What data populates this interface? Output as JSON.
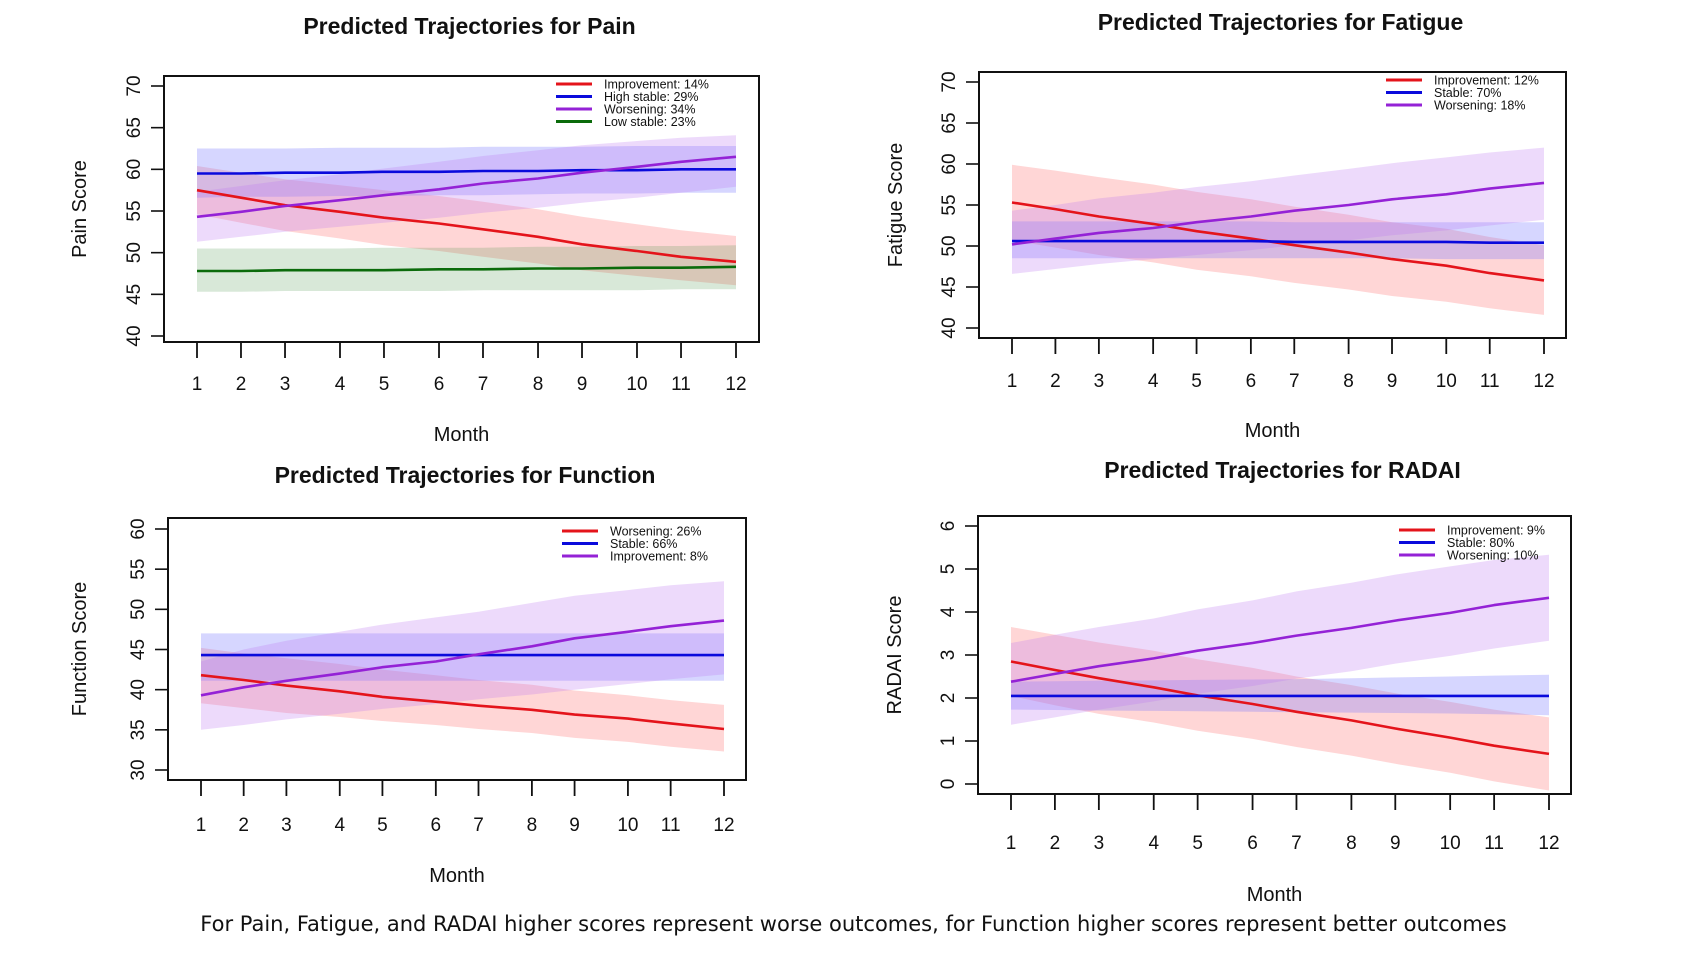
{
  "figure": {
    "caption": "For Pain, Fatigue, and RADAI higher scores represent worse outcomes, for Function higher scores represent better outcomes"
  },
  "colors": {
    "red": "#E4141B",
    "blue": "#0A0ADC",
    "purple": "#9422D6",
    "green": "#0B6B0B",
    "red_band": "rgba(255,120,120,0.30)",
    "blue_band": "rgba(120,120,255,0.30)",
    "purple_band": "rgba(190,120,240,0.27)",
    "green_band": "rgba(60,140,60,0.20)"
  },
  "chart_data": [
    {
      "id": "pain",
      "type": "line",
      "title": "Predicted Trajectories for Pain",
      "xlabel": "Month",
      "ylabel": "Pain Score",
      "x": [
        1,
        2,
        3,
        4,
        5,
        6,
        7,
        8,
        9,
        10,
        11,
        12
      ],
      "xticks": [
        "1",
        "2",
        "3",
        "4",
        "5",
        "6",
        "7",
        "8",
        "9",
        "10",
        "11",
        "12"
      ],
      "ylim": [
        40,
        70
      ],
      "yticks": [
        40,
        45,
        50,
        55,
        60,
        65,
        70
      ],
      "legend_position": "top-right",
      "grid": false,
      "series": [
        {
          "name": "Improvement: 14%",
          "color": "red",
          "values": [
            57.5,
            56.6,
            55.7,
            54.9,
            54.2,
            53.5,
            52.8,
            51.9,
            51.0,
            50.2,
            49.5,
            48.9
          ],
          "lower": [
            54.6,
            53.6,
            52.6,
            51.7,
            50.9,
            50.2,
            49.5,
            48.7,
            47.9,
            47.2,
            46.7,
            46.1
          ],
          "upper": [
            60.4,
            59.6,
            58.8,
            58.1,
            57.5,
            56.8,
            56.1,
            55.2,
            54.3,
            53.4,
            52.7,
            52.0
          ]
        },
        {
          "name": "High stable: 29%",
          "color": "blue",
          "values": [
            59.5,
            59.5,
            59.6,
            59.6,
            59.7,
            59.7,
            59.8,
            59.8,
            59.9,
            59.9,
            60.0,
            60.0
          ],
          "lower": [
            56.6,
            56.7,
            56.7,
            56.8,
            56.8,
            56.9,
            56.9,
            57.0,
            57.1,
            57.1,
            57.2,
            57.2
          ],
          "upper": [
            62.5,
            62.5,
            62.5,
            62.6,
            62.6,
            62.6,
            62.7,
            62.7,
            62.7,
            62.8,
            62.8,
            62.8
          ]
        },
        {
          "name": "Worsening: 34%",
          "color": "purple",
          "values": [
            54.3,
            54.9,
            55.6,
            56.3,
            56.9,
            57.6,
            58.3,
            58.9,
            59.6,
            60.3,
            60.9,
            61.5
          ],
          "lower": [
            51.3,
            51.9,
            52.5,
            53.1,
            53.6,
            54.2,
            54.8,
            55.4,
            56.0,
            56.6,
            57.2,
            57.9
          ],
          "upper": [
            57.3,
            58.0,
            58.7,
            59.4,
            60.1,
            60.9,
            61.6,
            62.3,
            62.9,
            63.4,
            63.8,
            64.1
          ]
        },
        {
          "name": "Low stable: 23%",
          "color": "green",
          "values": [
            47.8,
            47.8,
            47.9,
            47.9,
            47.9,
            48.0,
            48.0,
            48.1,
            48.1,
            48.2,
            48.2,
            48.3
          ],
          "lower": [
            45.3,
            45.3,
            45.4,
            45.4,
            45.4,
            45.4,
            45.5,
            45.5,
            45.5,
            45.5,
            45.6,
            45.6
          ],
          "upper": [
            50.5,
            50.5,
            50.5,
            50.5,
            50.6,
            50.6,
            50.6,
            50.7,
            50.7,
            50.8,
            50.8,
            50.9
          ]
        }
      ]
    },
    {
      "id": "fatigue",
      "type": "line",
      "title": "Predicted Trajectories for Fatigue",
      "xlabel": "Month",
      "ylabel": "Fatigue Score",
      "x": [
        1,
        2,
        3,
        4,
        5,
        6,
        7,
        8,
        9,
        10,
        11,
        12
      ],
      "xticks": [
        "1",
        "2",
        "3",
        "4",
        "5",
        "6",
        "7",
        "8",
        "9",
        "10",
        "11",
        "12"
      ],
      "ylim": [
        40,
        70
      ],
      "yticks": [
        40,
        45,
        50,
        55,
        60,
        65,
        70
      ],
      "legend_position": "top-right",
      "grid": false,
      "series": [
        {
          "name": "Improvement: 12%",
          "color": "red",
          "values": [
            55.3,
            54.5,
            53.6,
            52.7,
            51.8,
            50.9,
            50.1,
            49.2,
            48.4,
            47.6,
            46.7,
            45.8
          ],
          "lower": [
            50.7,
            49.8,
            48.9,
            48.0,
            47.1,
            46.3,
            45.5,
            44.7,
            43.9,
            43.2,
            42.4,
            41.6
          ],
          "upper": [
            59.9,
            59.2,
            58.4,
            57.5,
            56.6,
            55.7,
            54.8,
            53.8,
            52.9,
            52.1,
            51.1,
            50.1
          ]
        },
        {
          "name": "Stable: 70%",
          "color": "blue",
          "values": [
            50.6,
            50.6,
            50.6,
            50.6,
            50.6,
            50.6,
            50.5,
            50.5,
            50.5,
            50.5,
            50.4,
            50.4
          ],
          "lower": [
            48.5,
            48.5,
            48.5,
            48.5,
            48.5,
            48.5,
            48.5,
            48.5,
            48.5,
            48.4,
            48.4,
            48.4
          ],
          "upper": [
            53.0,
            53.0,
            53.0,
            53.0,
            53.0,
            53.0,
            52.9,
            52.9,
            52.9,
            52.9,
            52.9,
            52.9
          ]
        },
        {
          "name": "Worsening: 18%",
          "color": "purple",
          "values": [
            50.2,
            50.9,
            51.6,
            52.2,
            52.9,
            53.6,
            54.3,
            55.0,
            55.7,
            56.3,
            57.0,
            57.7
          ],
          "lower": [
            46.6,
            47.2,
            47.8,
            48.4,
            48.9,
            49.5,
            50.1,
            50.7,
            51.3,
            51.9,
            52.5,
            53.2
          ],
          "upper": [
            54.3,
            55.0,
            55.8,
            56.5,
            57.2,
            57.9,
            58.6,
            59.4,
            60.1,
            60.8,
            61.4,
            62.0
          ]
        }
      ]
    },
    {
      "id": "function",
      "type": "line",
      "title": "Predicted Trajectories for Function",
      "xlabel": "Month",
      "ylabel": "Function Score",
      "x": [
        1,
        2,
        3,
        4,
        5,
        6,
        7,
        8,
        9,
        10,
        11,
        12
      ],
      "xticks": [
        "1",
        "2",
        "3",
        "4",
        "5",
        "6",
        "7",
        "8",
        "9",
        "10",
        "11",
        "12"
      ],
      "ylim": [
        30,
        60
      ],
      "yticks": [
        30,
        35,
        40,
        45,
        50,
        55,
        60
      ],
      "legend_position": "top-right",
      "grid": false,
      "series": [
        {
          "name": "Worsening: 26%",
          "color": "red",
          "values": [
            41.8,
            41.2,
            40.5,
            39.8,
            39.1,
            38.5,
            38.0,
            37.5,
            36.9,
            36.4,
            35.8,
            35.1
          ],
          "lower": [
            38.3,
            37.7,
            37.1,
            36.6,
            36.1,
            35.6,
            35.1,
            34.6,
            34.0,
            33.5,
            32.9,
            32.3
          ],
          "upper": [
            45.2,
            44.5,
            43.9,
            43.2,
            42.5,
            41.8,
            41.2,
            40.6,
            39.9,
            39.3,
            38.7,
            38.1
          ]
        },
        {
          "name": "Stable: 66%",
          "color": "blue",
          "values": [
            44.3,
            44.3,
            44.3,
            44.3,
            44.3,
            44.3,
            44.3,
            44.3,
            44.3,
            44.3,
            44.3,
            44.3
          ],
          "lower": [
            41.1,
            41.1,
            41.1,
            41.1,
            41.1,
            41.1,
            41.1,
            41.1,
            41.1,
            41.1,
            41.1,
            41.1
          ],
          "upper": [
            47.0,
            47.0,
            47.0,
            47.0,
            47.0,
            47.0,
            47.0,
            47.0,
            47.0,
            47.0,
            47.0,
            47.0
          ]
        },
        {
          "name": "Improvement: 8%",
          "color": "purple",
          "values": [
            39.3,
            40.3,
            41.1,
            42.0,
            42.8,
            43.5,
            44.4,
            45.4,
            46.4,
            47.2,
            47.9,
            48.6
          ],
          "lower": [
            35.0,
            35.6,
            36.3,
            37.0,
            37.6,
            38.2,
            38.8,
            39.4,
            40.0,
            40.7,
            41.3,
            41.9
          ],
          "upper": [
            43.5,
            45.0,
            46.1,
            47.2,
            48.1,
            49.0,
            49.7,
            50.8,
            51.7,
            52.4,
            53.0,
            53.5
          ]
        }
      ]
    },
    {
      "id": "radai",
      "type": "line",
      "title": "Predicted Trajectories for RADAI",
      "xlabel": "Month",
      "ylabel": "RADAI Score",
      "x": [
        1,
        2,
        3,
        4,
        5,
        6,
        7,
        8,
        9,
        10,
        11,
        12
      ],
      "xticks": [
        "1",
        "2",
        "3",
        "4",
        "5",
        "6",
        "7",
        "8",
        "9",
        "10",
        "11",
        "12"
      ],
      "ylim": [
        0,
        6
      ],
      "yticks": [
        0,
        1,
        2,
        3,
        4,
        5,
        6
      ],
      "legend_position": "top-right",
      "grid": false,
      "series": [
        {
          "name": "Improvement: 9%",
          "color": "red",
          "values": [
            2.85,
            2.65,
            2.46,
            2.25,
            2.06,
            1.86,
            1.68,
            1.48,
            1.29,
            1.08,
            0.89,
            0.7
          ],
          "lower": [
            2.05,
            1.83,
            1.63,
            1.43,
            1.24,
            1.05,
            0.86,
            0.66,
            0.47,
            0.26,
            0.06,
            -0.15
          ],
          "upper": [
            3.65,
            3.47,
            3.29,
            3.1,
            2.9,
            2.7,
            2.5,
            2.3,
            2.11,
            1.91,
            1.73,
            1.55
          ]
        },
        {
          "name": "Stable: 80%",
          "color": "blue",
          "values": [
            2.05,
            2.05,
            2.05,
            2.05,
            2.05,
            2.05,
            2.05,
            2.05,
            2.05,
            2.05,
            2.05,
            2.05
          ],
          "lower": [
            1.73,
            1.72,
            1.71,
            1.7,
            1.69,
            1.68,
            1.67,
            1.66,
            1.65,
            1.64,
            1.62,
            1.6
          ],
          "upper": [
            2.38,
            2.39,
            2.4,
            2.41,
            2.42,
            2.43,
            2.44,
            2.46,
            2.48,
            2.5,
            2.52,
            2.54
          ]
        },
        {
          "name": "Worsening: 10%",
          "color": "purple",
          "values": [
            2.38,
            2.56,
            2.74,
            2.92,
            3.1,
            3.28,
            3.45,
            3.63,
            3.8,
            3.98,
            4.16,
            4.33
          ],
          "lower": [
            1.38,
            1.55,
            1.73,
            1.92,
            2.1,
            2.28,
            2.45,
            2.62,
            2.8,
            2.98,
            3.15,
            3.33
          ],
          "upper": [
            3.28,
            3.47,
            3.65,
            3.85,
            4.06,
            4.27,
            4.48,
            4.68,
            4.87,
            5.06,
            5.21,
            5.33
          ]
        }
      ]
    }
  ]
}
